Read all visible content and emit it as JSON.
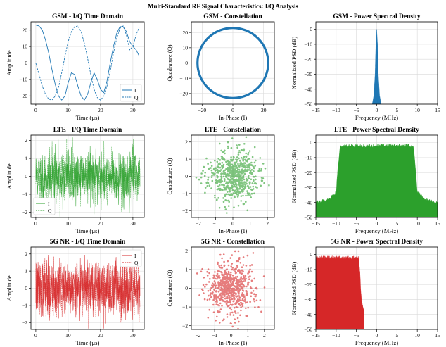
{
  "figure": {
    "title": "Multi-Standard RF Signal Characteristics: I/Q Analysis"
  },
  "colors": {
    "gsm": "#1f77b4",
    "lte": "#2ca02c",
    "nr": "#d62728"
  },
  "chart_data": [
    {
      "type": "line",
      "title": "GSM - I/Q Time Domain",
      "xlabel": "Time (µs)",
      "ylabel": "Amplitude",
      "xlim": [
        -1.5,
        33.5
      ],
      "ylim": [
        -25,
        25
      ],
      "xticks": [
        0,
        10,
        20,
        30
      ],
      "yticks": [
        -20,
        -10,
        0,
        10,
        20
      ],
      "legend": "bottom-right",
      "grid": true,
      "series": [
        {
          "name": "I",
          "style": "solid",
          "x": [
            0,
            1,
            2,
            3,
            4,
            5,
            6,
            7,
            8,
            9,
            10,
            11,
            12,
            13,
            14,
            15,
            16,
            17,
            18,
            19,
            20,
            21,
            22,
            23,
            24,
            25,
            26,
            27,
            28,
            29,
            30,
            31,
            32
          ],
          "y": [
            23,
            22.5,
            20,
            14,
            6,
            -4,
            -13,
            -20,
            -22.5,
            -20,
            -12,
            -6,
            -7,
            -14,
            -20,
            -22.5,
            -19,
            -12,
            -6,
            -10,
            -16,
            -18,
            -11,
            0,
            10,
            18,
            22,
            22,
            19,
            13,
            10,
            8,
            4
          ]
        },
        {
          "name": "Q",
          "style": "dashed",
          "x": [
            0,
            1,
            2,
            3,
            4,
            5,
            6,
            7,
            8,
            9,
            10,
            11,
            12,
            13,
            14,
            15,
            16,
            17,
            18,
            19,
            20,
            21,
            22,
            23,
            24,
            25,
            26,
            27,
            28,
            29,
            30,
            31,
            32
          ],
          "y": [
            0,
            -7,
            -14,
            -19,
            -22,
            -22.5,
            -20,
            -15,
            -6,
            4,
            13,
            19,
            22,
            22.5,
            19,
            12,
            3,
            -7,
            -16,
            -21,
            -22.5,
            -20,
            -14,
            -5,
            6,
            15,
            21,
            22.5,
            17,
            8,
            10,
            17,
            22
          ]
        }
      ]
    },
    {
      "type": "scatter",
      "title": "GSM - Constellation",
      "xlabel": "In-Phase (I)",
      "ylabel": "Quadrature (Q)",
      "xlim": [
        -27,
        27
      ],
      "ylim": [
        -27,
        27
      ],
      "xticks": [
        -20,
        0,
        20
      ],
      "yticks": [
        -20,
        -10,
        0,
        10,
        20
      ],
      "grid": true,
      "shape": "circle",
      "radius": 23
    },
    {
      "type": "area",
      "title": "GSM - Power Spectral Density",
      "xlabel": "Frequency (MHz)",
      "ylabel": "Normalized PSD (dB)",
      "xlim": [
        -15,
        15
      ],
      "ylim": [
        -50,
        5
      ],
      "xticks": [
        -15,
        -10,
        -5,
        0,
        5,
        10,
        15
      ],
      "yticks": [
        -50,
        -40,
        -30,
        -20,
        -10,
        0
      ],
      "grid": true,
      "x": [
        -1.1,
        -0.7,
        -0.4,
        -0.2,
        0,
        0.2,
        0.4,
        0.7,
        1.1
      ],
      "y": [
        -50,
        -44,
        -30,
        -10,
        0,
        -10,
        -30,
        -44,
        -50
      ]
    },
    {
      "type": "line",
      "title": "LTE - I/Q Time Domain",
      "xlabel": "Time (µs)",
      "ylabel": "Amplitude",
      "xlim": [
        -1.5,
        33.5
      ],
      "ylim": [
        -2.3,
        2.3
      ],
      "xticks": [
        0,
        10,
        20,
        30
      ],
      "yticks": [
        -2,
        -1,
        0,
        1,
        2
      ],
      "legend": "bottom-left",
      "grid": true,
      "samples": 480,
      "amplitude": 0.75,
      "seed": 11,
      "series": [
        {
          "name": "I",
          "style": "solid"
        },
        {
          "name": "Q",
          "style": "dashed"
        }
      ]
    },
    {
      "type": "scatter",
      "title": "LTE - Constellation",
      "xlabel": "In-Phase (I)",
      "ylabel": "Quadrature (Q)",
      "xlim": [
        -2.4,
        2.4
      ],
      "ylim": [
        -2.4,
        2.4
      ],
      "xticks": [
        -2,
        -1,
        0,
        1,
        2
      ],
      "yticks": [
        -2,
        -1,
        0,
        1,
        2
      ],
      "grid": true,
      "points": 650,
      "spread": 0.72,
      "seed": 23
    },
    {
      "type": "area",
      "title": "LTE - Power Spectral Density",
      "xlabel": "Frequency (MHz)",
      "ylabel": "Normalized PSD (dB)",
      "xlim": [
        -15,
        15
      ],
      "ylim": [
        -50,
        5
      ],
      "xticks": [
        -15,
        -10,
        -5,
        0,
        5,
        10,
        15
      ],
      "yticks": [
        -50,
        -40,
        -30,
        -20,
        -10,
        0
      ],
      "grid": true,
      "x": [
        -15,
        -12,
        -10,
        -9.5,
        -9,
        9,
        9.5,
        10,
        12,
        15
      ],
      "y": [
        -40,
        -38,
        -33,
        -15,
        -2,
        -2,
        -15,
        -33,
        -38,
        -40
      ]
    },
    {
      "type": "line",
      "title": "5G NR - I/Q Time Domain",
      "xlabel": "Time (µs)",
      "ylabel": "Amplitude",
      "xlim": [
        -1.5,
        33.5
      ],
      "ylim": [
        -2.4,
        2.4
      ],
      "xticks": [
        0,
        10,
        20,
        30
      ],
      "yticks": [
        -2,
        -1,
        0,
        1,
        2
      ],
      "legend": "top-right",
      "grid": true,
      "samples": 600,
      "amplitude": 0.8,
      "seed": 37,
      "series": [
        {
          "name": "I",
          "style": "solid"
        },
        {
          "name": "Q",
          "style": "dashed"
        }
      ]
    },
    {
      "type": "scatter",
      "title": "5G NR - Constellation",
      "xlabel": "In-Phase (I)",
      "ylabel": "Quadrature (Q)",
      "xlim": [
        -2.4,
        2.6
      ],
      "ylim": [
        -2.2,
        2.2
      ],
      "xticks": [
        -2,
        -1,
        0,
        1,
        2
      ],
      "yticks": [
        -2,
        -1,
        0,
        1,
        2
      ],
      "grid": true,
      "points": 650,
      "spread": 0.72,
      "seed": 53
    },
    {
      "type": "area",
      "title": "5G NR - Power Spectral Density",
      "xlabel": "Frequency (MHz)",
      "ylabel": "Normalized PSD (dB)",
      "xlim": [
        -15,
        15
      ],
      "ylim": [
        -50,
        5
      ],
      "xticks": [
        -15,
        -10,
        -5,
        0,
        5,
        10,
        15
      ],
      "yticks": [
        -50,
        -40,
        -30,
        -20,
        -10,
        0
      ],
      "grid": true,
      "x": [
        -15,
        -4.5,
        -4.2,
        -4,
        -3.8,
        -3.6,
        -3.3,
        -3.1
      ],
      "y": [
        -2,
        -2,
        -10,
        -20,
        -29,
        -33,
        -36,
        -37
      ]
    }
  ]
}
